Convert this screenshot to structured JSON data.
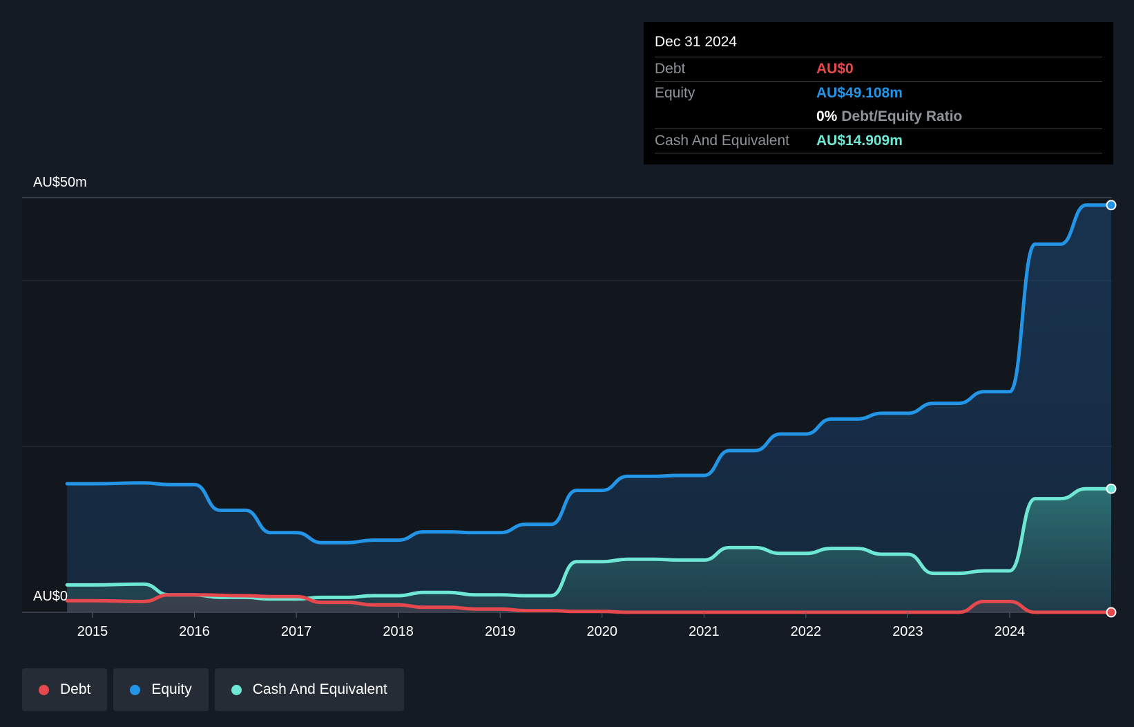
{
  "tooltip": {
    "date": "Dec 31 2024",
    "debt_label": "Debt",
    "debt_value": "AU$0",
    "equity_label": "Equity",
    "equity_value": "AU$49.108m",
    "ratio_value": "0%",
    "ratio_label": "Debt/Equity Ratio",
    "cash_label": "Cash And Equivalent",
    "cash_value": "AU$14.909m"
  },
  "legend": [
    {
      "label": "Debt",
      "color": "#e5484d"
    },
    {
      "label": "Equity",
      "color": "#2394e6"
    },
    {
      "label": "Cash And Equivalent",
      "color": "#6ee7d4"
    }
  ],
  "chart_data": {
    "type": "area",
    "y_top_label": "AU$50m",
    "y_bottom_label": "AU$0",
    "ylim": [
      0,
      50
    ],
    "x_ticks": [
      "2015",
      "2016",
      "2017",
      "2018",
      "2019",
      "2020",
      "2021",
      "2022",
      "2023",
      "2024"
    ],
    "colors": {
      "debt": "#e5484d",
      "equity": "#2394e6",
      "cash": "#6ee7d4"
    },
    "series": [
      {
        "key": "equity",
        "points": [
          [
            2014.75,
            15.5
          ],
          [
            2015.0,
            15.5
          ],
          [
            2015.5,
            15.6
          ],
          [
            2015.75,
            15.4
          ],
          [
            2016.0,
            15.4
          ],
          [
            2016.25,
            12.3
          ],
          [
            2016.5,
            12.3
          ],
          [
            2016.75,
            9.6
          ],
          [
            2017.0,
            9.6
          ],
          [
            2017.25,
            8.4
          ],
          [
            2017.5,
            8.4
          ],
          [
            2017.75,
            8.7
          ],
          [
            2018.0,
            8.7
          ],
          [
            2018.25,
            9.7
          ],
          [
            2018.5,
            9.7
          ],
          [
            2018.75,
            9.6
          ],
          [
            2019.0,
            9.6
          ],
          [
            2019.25,
            10.6
          ],
          [
            2019.5,
            10.6
          ],
          [
            2019.75,
            14.7
          ],
          [
            2020.0,
            14.7
          ],
          [
            2020.25,
            16.4
          ],
          [
            2020.5,
            16.4
          ],
          [
            2020.75,
            16.5
          ],
          [
            2021.0,
            16.5
          ],
          [
            2021.25,
            19.5
          ],
          [
            2021.5,
            19.5
          ],
          [
            2021.75,
            21.5
          ],
          [
            2022.0,
            21.5
          ],
          [
            2022.25,
            23.3
          ],
          [
            2022.5,
            23.3
          ],
          [
            2022.75,
            24.0
          ],
          [
            2023.0,
            24.0
          ],
          [
            2023.25,
            25.2
          ],
          [
            2023.5,
            25.2
          ],
          [
            2023.75,
            26.6
          ],
          [
            2024.0,
            26.6
          ],
          [
            2024.25,
            44.4
          ],
          [
            2024.5,
            44.4
          ],
          [
            2024.75,
            49.1
          ],
          [
            2025.0,
            49.1
          ]
        ]
      },
      {
        "key": "cash",
        "points": [
          [
            2014.75,
            3.3
          ],
          [
            2015.0,
            3.3
          ],
          [
            2015.5,
            3.4
          ],
          [
            2015.75,
            2.1
          ],
          [
            2016.0,
            2.1
          ],
          [
            2016.25,
            1.8
          ],
          [
            2016.5,
            1.8
          ],
          [
            2016.75,
            1.6
          ],
          [
            2017.0,
            1.6
          ],
          [
            2017.25,
            1.8
          ],
          [
            2017.5,
            1.8
          ],
          [
            2017.75,
            2.0
          ],
          [
            2018.0,
            2.0
          ],
          [
            2018.25,
            2.4
          ],
          [
            2018.5,
            2.4
          ],
          [
            2018.75,
            2.1
          ],
          [
            2019.0,
            2.1
          ],
          [
            2019.25,
            2.0
          ],
          [
            2019.5,
            2.0
          ],
          [
            2019.75,
            6.1
          ],
          [
            2020.0,
            6.1
          ],
          [
            2020.25,
            6.4
          ],
          [
            2020.5,
            6.4
          ],
          [
            2020.75,
            6.3
          ],
          [
            2021.0,
            6.3
          ],
          [
            2021.25,
            7.8
          ],
          [
            2021.5,
            7.8
          ],
          [
            2021.75,
            7.1
          ],
          [
            2022.0,
            7.1
          ],
          [
            2022.25,
            7.7
          ],
          [
            2022.5,
            7.7
          ],
          [
            2022.75,
            7.0
          ],
          [
            2023.0,
            7.0
          ],
          [
            2023.25,
            4.7
          ],
          [
            2023.5,
            4.7
          ],
          [
            2023.75,
            5.0
          ],
          [
            2024.0,
            5.0
          ],
          [
            2024.25,
            13.7
          ],
          [
            2024.5,
            13.7
          ],
          [
            2024.75,
            14.9
          ],
          [
            2025.0,
            14.9
          ]
        ]
      },
      {
        "key": "debt",
        "points": [
          [
            2014.75,
            1.4
          ],
          [
            2015.0,
            1.4
          ],
          [
            2015.5,
            1.3
          ],
          [
            2015.75,
            2.1
          ],
          [
            2016.0,
            2.1
          ],
          [
            2016.5,
            2.0
          ],
          [
            2016.75,
            1.9
          ],
          [
            2017.0,
            1.9
          ],
          [
            2017.25,
            1.2
          ],
          [
            2017.5,
            1.2
          ],
          [
            2017.75,
            0.9
          ],
          [
            2018.0,
            0.9
          ],
          [
            2018.25,
            0.6
          ],
          [
            2018.5,
            0.6
          ],
          [
            2018.75,
            0.4
          ],
          [
            2019.0,
            0.4
          ],
          [
            2019.25,
            0.2
          ],
          [
            2019.5,
            0.2
          ],
          [
            2019.75,
            0.1
          ],
          [
            2020.0,
            0.1
          ],
          [
            2020.25,
            0.0
          ],
          [
            2023.5,
            0.0
          ],
          [
            2023.75,
            1.3
          ],
          [
            2024.0,
            1.3
          ],
          [
            2024.25,
            0.0
          ],
          [
            2025.0,
            0.0
          ]
        ]
      }
    ]
  }
}
